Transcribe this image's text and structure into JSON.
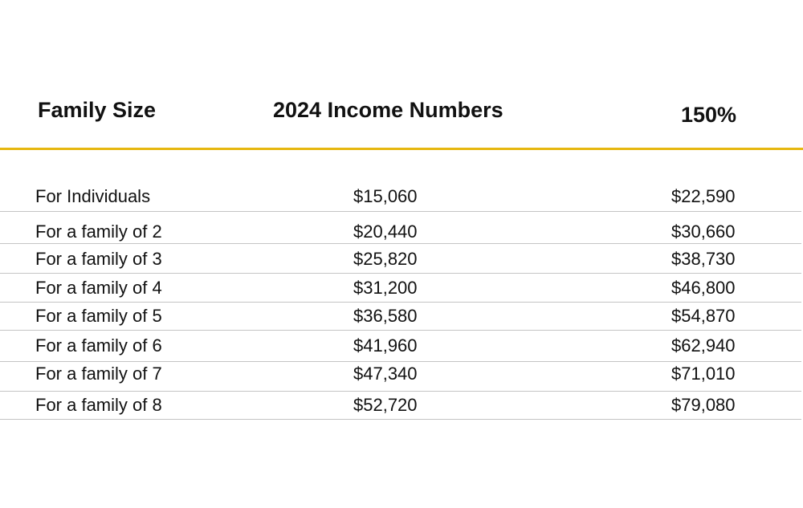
{
  "table": {
    "headers": [
      "Family Size",
      "2024 Income Numbers",
      "150%"
    ],
    "accent_color": "#e6b710",
    "rows": [
      [
        "For Individuals",
        "$15,060",
        "$22,590"
      ],
      [
        "For a family of 2",
        "$20,440",
        "$30,660"
      ],
      [
        "For a family of 3",
        "$25,820",
        "$38,730"
      ],
      [
        "For a family of 4",
        "$31,200",
        "$46,800"
      ],
      [
        "For a family of 5",
        "$36,580",
        "$54,870"
      ],
      [
        "For a family of 6",
        "$41,960",
        "$62,940"
      ],
      [
        "For a family of 7",
        "$47,340",
        "$71,010"
      ],
      [
        "For a family of 8",
        "$52,720",
        "$79,080"
      ]
    ]
  }
}
